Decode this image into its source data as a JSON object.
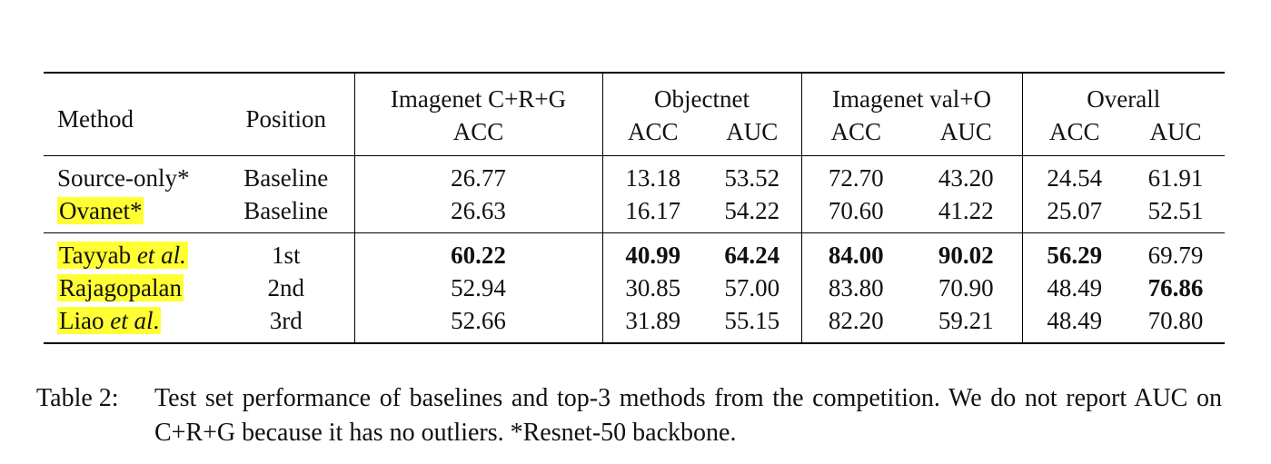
{
  "table": {
    "header": {
      "method": "Method",
      "position": "Position",
      "groups": [
        "Imagenet C+R+G",
        "Objectnet",
        "Imagenet val+O",
        "Overall"
      ],
      "sub": [
        "ACC",
        "ACC",
        "AUC",
        "ACC",
        "AUC",
        "ACC",
        "AUC"
      ]
    },
    "rows": [
      {
        "method": "Source-only*",
        "position": "Baseline",
        "values": [
          "26.77",
          "13.18",
          "53.52",
          "72.70",
          "43.20",
          "24.54",
          "61.91"
        ]
      },
      {
        "method": "Ovanet*",
        "position": "Baseline",
        "values": [
          "26.63",
          "16.17",
          "54.22",
          "70.60",
          "41.22",
          "25.07",
          "52.51"
        ]
      },
      {
        "method_name": "Tayyab",
        "method_suffix": "et al.",
        "method_end": ".",
        "position": "1st",
        "values": [
          "60.22",
          "40.99",
          "64.24",
          "84.00",
          "90.02",
          "56.29",
          "69.79"
        ]
      },
      {
        "method": "Rajagopalan",
        "position": "2nd",
        "values": [
          "52.94",
          "30.85",
          "57.00",
          "83.80",
          "70.90",
          "48.49",
          "76.86"
        ]
      },
      {
        "method_name": "Liao",
        "method_suffix": "et al",
        "method_end": ".",
        "position": "3rd",
        "values": [
          "52.66",
          "31.89",
          "55.15",
          "82.20",
          "59.21",
          "48.49",
          "70.80"
        ]
      }
    ],
    "highlight_color": "#ffff33"
  },
  "caption": {
    "label": "Table 2:",
    "text": "Test set performance of baselines and top-3 methods from the competition. We do not report AUC on C+R+G because it has no outliers. *Resnet-50 backbone."
  }
}
